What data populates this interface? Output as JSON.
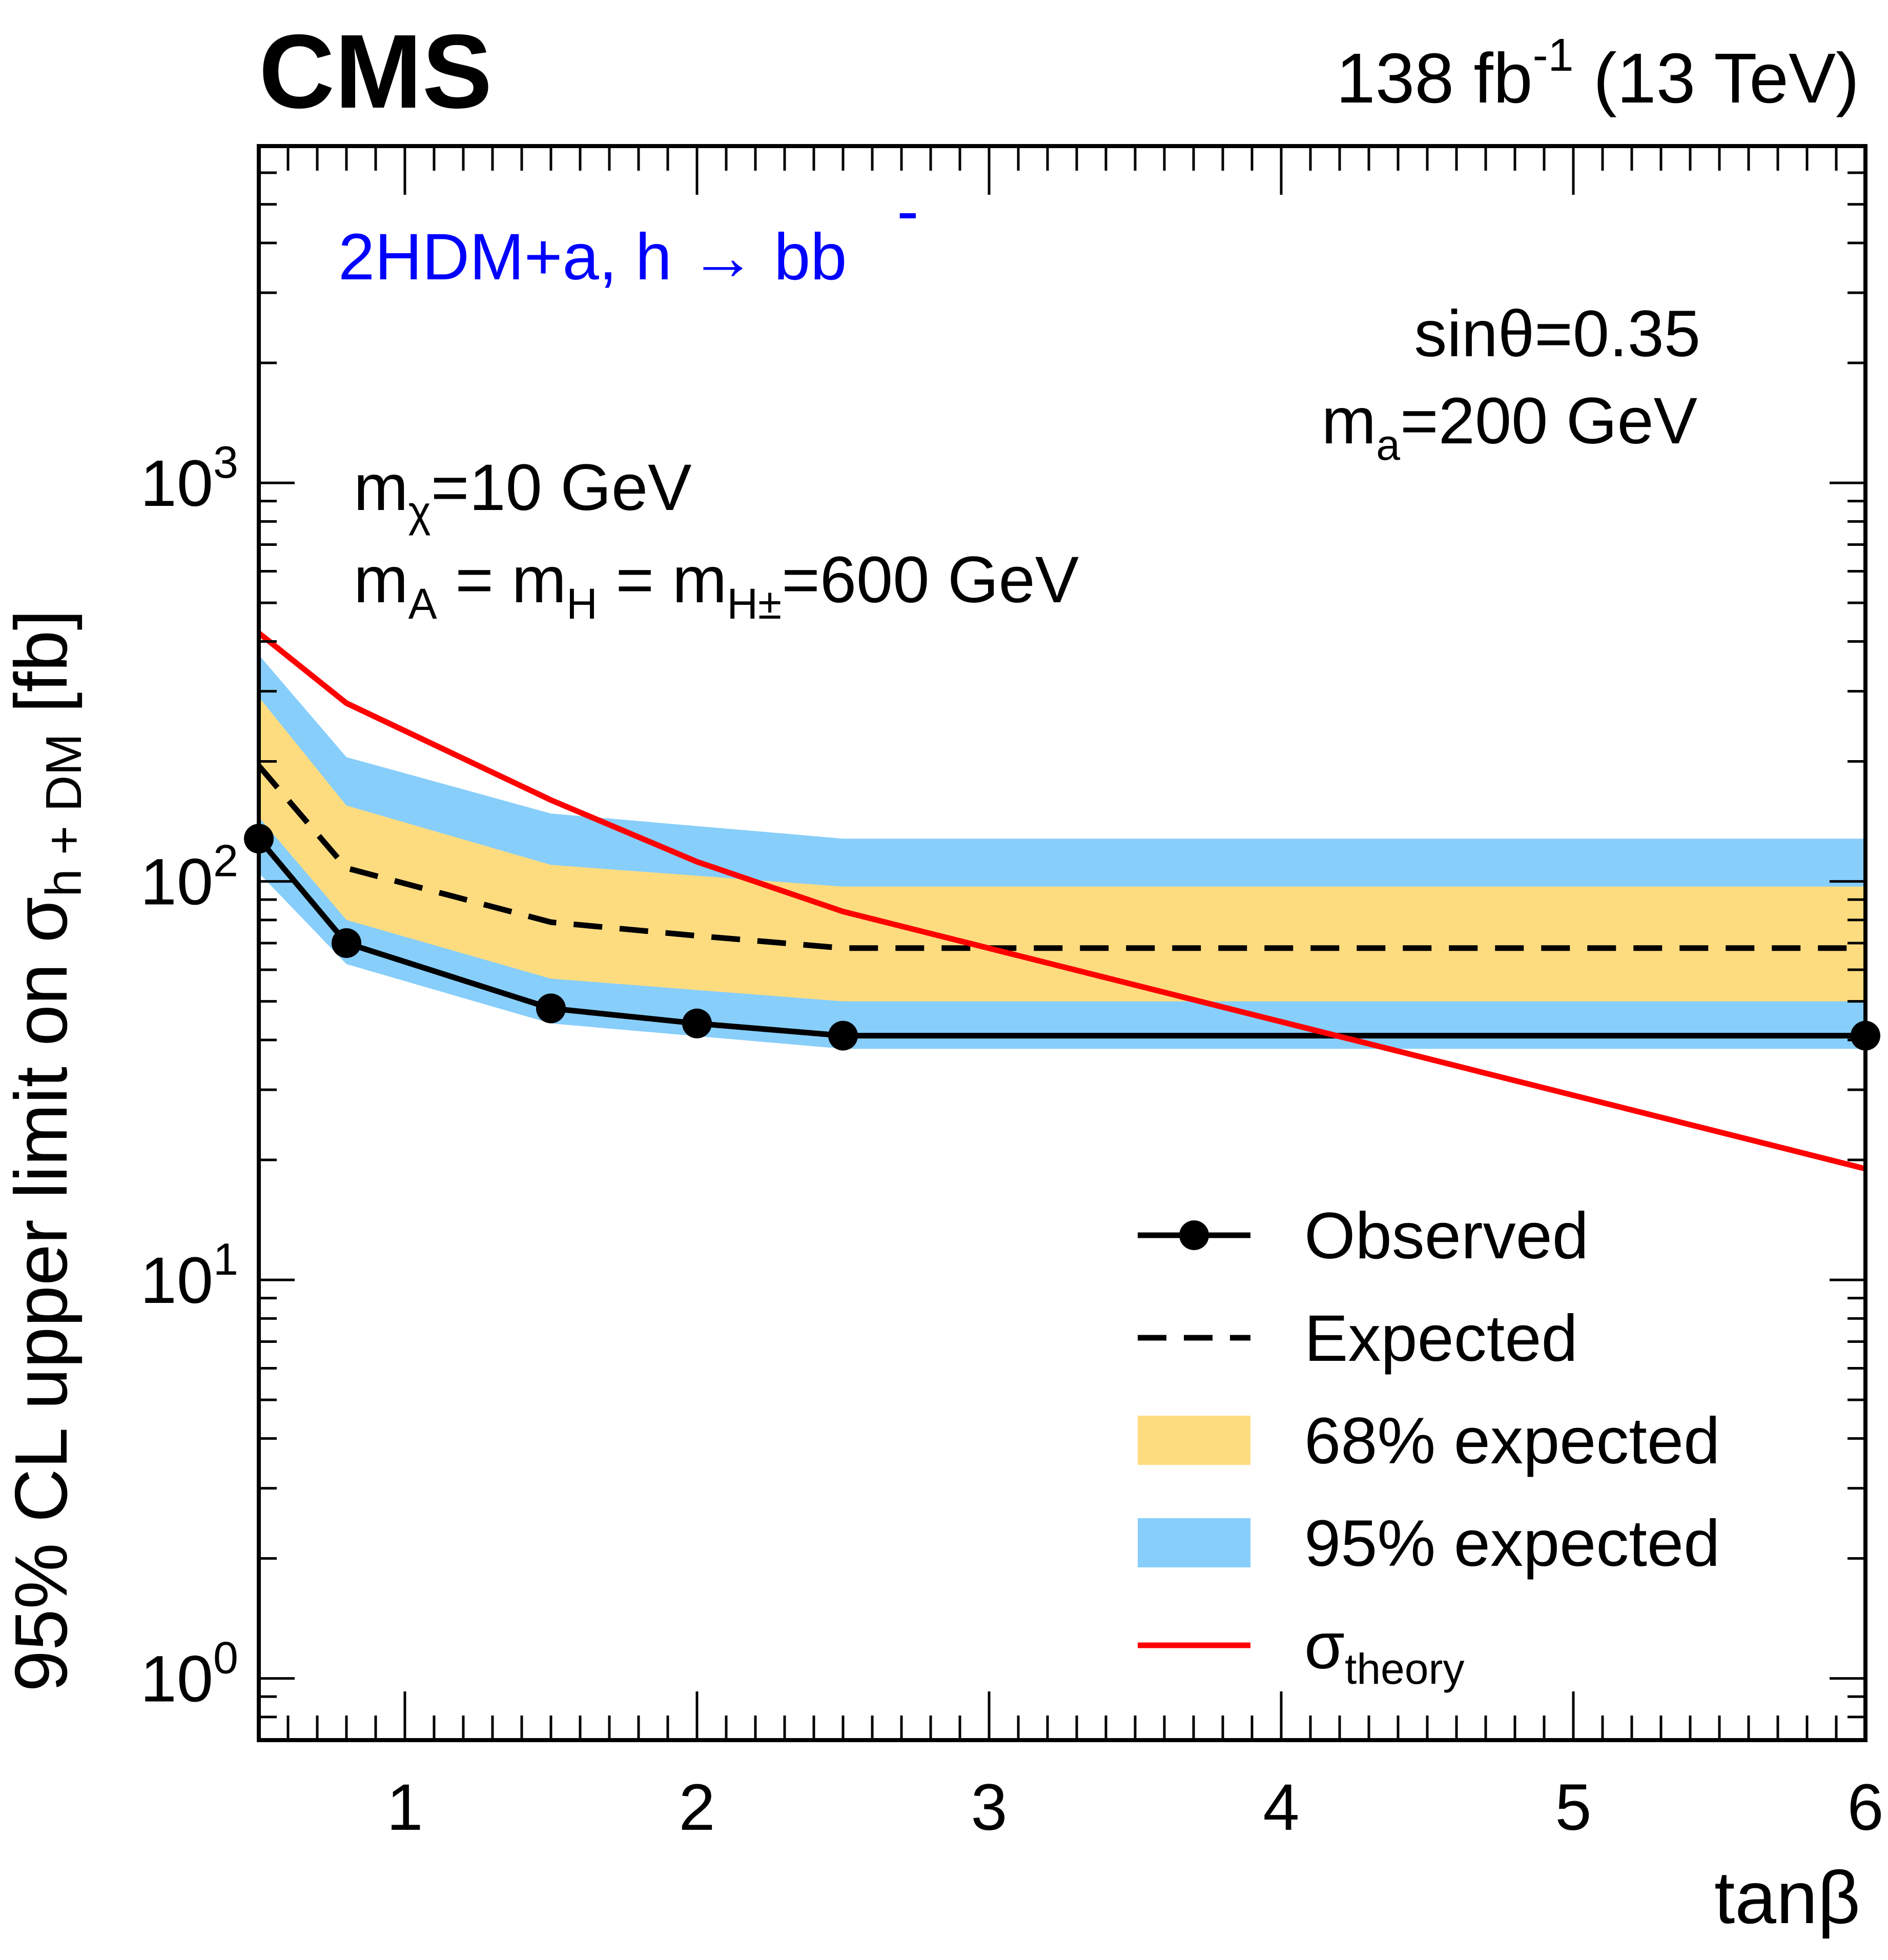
{
  "colors": {
    "band68": "#fddc80",
    "band95": "#87cefa",
    "observed": "#000000",
    "expected": "#000000",
    "theory": "#ff0000",
    "model_label": "#0000ff",
    "frame": "#000000"
  },
  "chart_data": {
    "type": "line",
    "title": "",
    "header": {
      "experiment": "CMS",
      "lumi": "138 fb",
      "lumi_sup": "-1",
      "energy": " (13 TeV)"
    },
    "xlabel": "tanβ",
    "ylabel_main": "95% CL upper limit on σ",
    "ylabel_sub": "h + DM",
    "ylabel_unit": " [fb]",
    "xlim": [
      0.5,
      6.0
    ],
    "ylim": [
      0.7,
      7000
    ],
    "yscale": "log",
    "x_tick_labels": [
      {
        "value": 1,
        "label": "1"
      },
      {
        "value": 2,
        "label": "2"
      },
      {
        "value": 3,
        "label": "3"
      },
      {
        "value": 4,
        "label": "4"
      },
      {
        "value": 5,
        "label": "5"
      },
      {
        "value": 6,
        "label": "6"
      }
    ],
    "y_tick_labels": [
      {
        "value": 1,
        "base": "10",
        "exp": "0"
      },
      {
        "value": 10,
        "base": "10",
        "exp": "1"
      },
      {
        "value": 100,
        "base": "10",
        "exp": "2"
      },
      {
        "value": 1000,
        "base": "10",
        "exp": "3"
      }
    ],
    "series": [
      {
        "name": "Observed",
        "style": "line-markers",
        "x": [
          0.5,
          0.8,
          1.5,
          2.0,
          2.5,
          6.0
        ],
        "values": [
          128,
          70,
          48,
          44,
          41,
          41
        ]
      },
      {
        "name": "Expected",
        "style": "dashed",
        "x": [
          0.5,
          0.8,
          1.5,
          2.0,
          2.5,
          6.0
        ],
        "values": [
          195,
          108,
          79,
          73,
          68,
          68
        ]
      },
      {
        "name": "68% expected",
        "style": "band",
        "x": [
          0.5,
          0.8,
          1.5,
          2.5,
          6.0
        ],
        "lower": [
          145,
          80,
          57,
          50,
          50
        ],
        "upper": [
          290,
          155,
          110,
          97,
          97
        ]
      },
      {
        "name": "95% expected",
        "style": "band",
        "x": [
          0.5,
          0.8,
          1.5,
          2.5,
          6.0
        ],
        "lower": [
          105,
          62,
          44,
          38,
          38
        ],
        "upper": [
          370,
          205,
          148,
          128,
          128
        ]
      },
      {
        "name": "σtheory",
        "style": "line",
        "x": [
          0.5,
          0.8,
          1.5,
          2.0,
          2.5,
          6.0
        ],
        "values": [
          420,
          280,
          160,
          112,
          84,
          19
        ]
      }
    ],
    "legend": {
      "position": "bottom-right",
      "items": [
        {
          "label": "Observed",
          "type": "observed"
        },
        {
          "label": "Expected",
          "type": "expected"
        },
        {
          "label": "68% expected",
          "type": "band68"
        },
        {
          "label": "95% expected",
          "type": "band95"
        },
        {
          "label": "σ",
          "sub": "theory",
          "type": "theory"
        }
      ]
    },
    "annotations": {
      "model": "2HDM+a, h → bb",
      "model_bar": "-",
      "sin_theta": "sinθ=0.35",
      "ma": {
        "m": "m",
        "sub": "a",
        "rest": "=200 GeV"
      },
      "mchi": {
        "m": "m",
        "sub": "χ",
        "rest": "=10 GeV"
      },
      "mA": {
        "mA": "m",
        "subA": "A",
        "eq1": " = ",
        "mH": "m",
        "subH": "H",
        "eq2": " = ",
        "mHpm": "m",
        "subHpm": "H±",
        "rest": "=600 GeV"
      }
    }
  }
}
